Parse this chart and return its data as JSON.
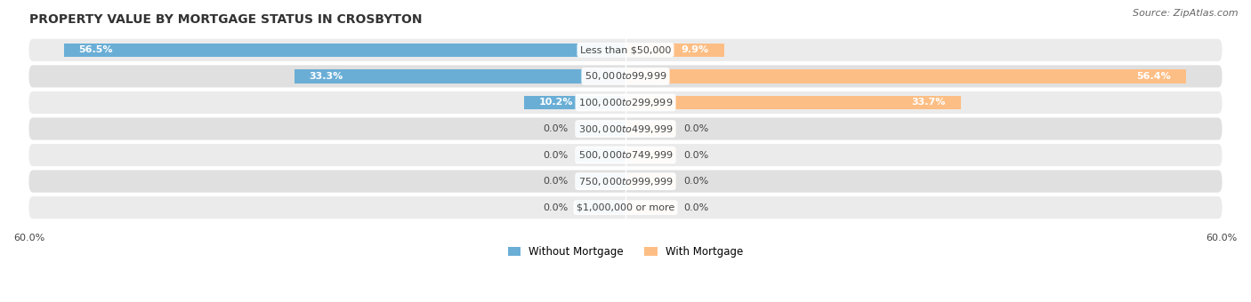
{
  "title": "PROPERTY VALUE BY MORTGAGE STATUS IN CROSBYTON",
  "source": "Source: ZipAtlas.com",
  "categories": [
    "Less than $50,000",
    "$50,000 to $99,999",
    "$100,000 to $299,999",
    "$300,000 to $499,999",
    "$500,000 to $749,999",
    "$750,000 to $999,999",
    "$1,000,000 or more"
  ],
  "without_mortgage": [
    56.5,
    33.3,
    10.2,
    0.0,
    0.0,
    0.0,
    0.0
  ],
  "with_mortgage": [
    9.9,
    56.4,
    33.7,
    0.0,
    0.0,
    0.0,
    0.0
  ],
  "without_color": "#6aaed6",
  "with_color": "#fdbe85",
  "row_bg_color_odd": "#ebebeb",
  "row_bg_color_even": "#e0e0e0",
  "xlim": 60.0,
  "stub_size": 5.0,
  "title_fontsize": 10,
  "label_fontsize": 8,
  "value_fontsize": 8,
  "source_fontsize": 8,
  "legend_fontsize": 8.5,
  "figsize": [
    14.06,
    3.4
  ],
  "dpi": 100
}
